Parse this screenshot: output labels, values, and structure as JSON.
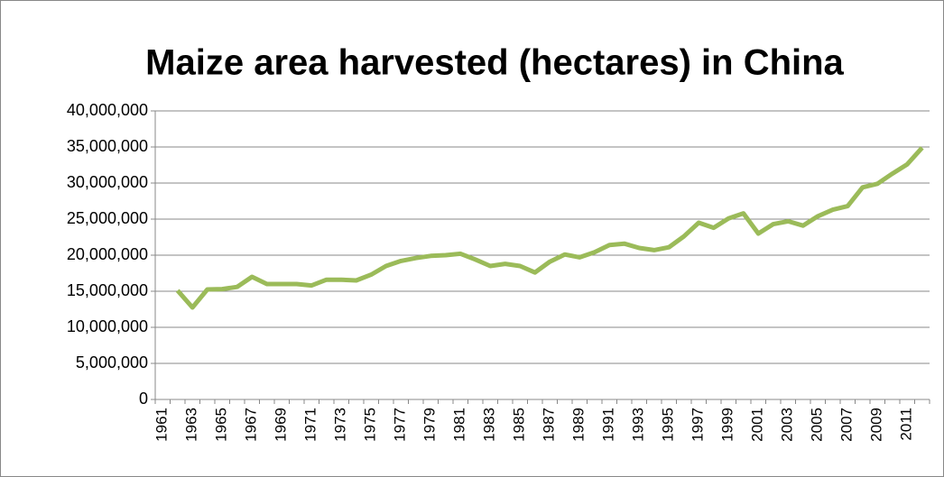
{
  "chart_data": {
    "type": "line",
    "title": "Maize area harvested (hectares) in China",
    "categories": [
      "1961",
      null,
      "1963",
      null,
      "1965",
      null,
      "1967",
      null,
      "1969",
      null,
      "1971",
      null,
      "1973",
      null,
      "1975",
      null,
      "1977",
      null,
      "1979",
      null,
      "1981",
      null,
      "1983",
      null,
      "1985",
      null,
      "1987",
      null,
      "1989",
      null,
      "1991",
      null,
      "1993",
      null,
      "1995",
      null,
      "1997",
      null,
      "1999",
      null,
      "2001",
      null,
      "2003",
      null,
      "2005",
      null,
      "2007",
      null,
      "2009",
      null,
      "2011",
      null
    ],
    "series": [
      {
        "name": "Maize area harvested",
        "color": "#9bbb59",
        "values": [
          null,
          15100000,
          12750000,
          15250000,
          15300000,
          15600000,
          17000000,
          16000000,
          16000000,
          16000000,
          15800000,
          16600000,
          16600000,
          16500000,
          17300000,
          18500000,
          19200000,
          19600000,
          19900000,
          20000000,
          20200000,
          19400000,
          18500000,
          18800000,
          18500000,
          17600000,
          19100000,
          20100000,
          19700000,
          20400000,
          21400000,
          21600000,
          21000000,
          20700000,
          21100000,
          22600000,
          24500000,
          23800000,
          25100000,
          25800000,
          23000000,
          24300000,
          24700000,
          24100000,
          25400000,
          26300000,
          26800000,
          29400000,
          29900000,
          31300000,
          32600000,
          34900000
        ]
      }
    ],
    "ylim": [
      0,
      40000000
    ],
    "yticks": [
      0,
      {
        "value": 5000000,
        "label": "5,000,000"
      },
      {
        "value": 10000000,
        "label": "10,000,000"
      },
      {
        "value": 15000000,
        "label": "15,000,000"
      },
      {
        "value": 20000000,
        "label": "20,000,000"
      },
      {
        "value": 25000000,
        "label": "25,000,000"
      },
      {
        "value": 30000000,
        "label": "30,000,000"
      },
      {
        "value": 35000000,
        "label": "35,000,000"
      },
      {
        "value": 40000000,
        "label": "40,000,000"
      }
    ],
    "grid": true
  }
}
